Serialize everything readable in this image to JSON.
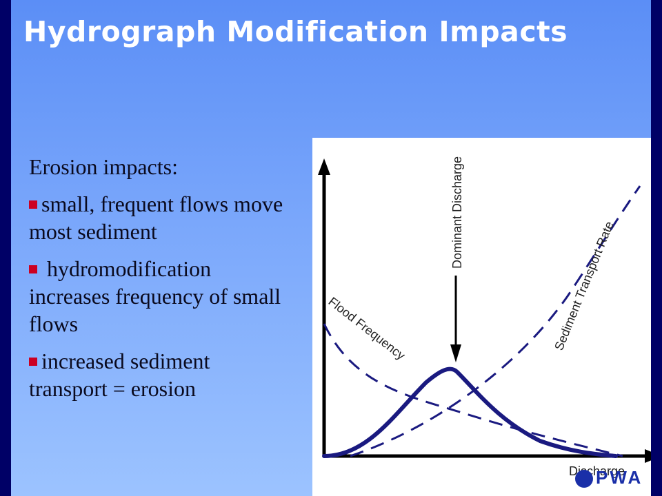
{
  "slide": {
    "title": "Hydrograph Modification Impacts",
    "heading": "Erosion impacts:",
    "bullets": [
      "small, frequent flows move most sediment",
      " hydromodification increases frequency of small flows",
      "increased sediment transport = erosion"
    ],
    "colors": {
      "background_top": "#5b8ef6",
      "background_bottom": "#9cc3ff",
      "frame": "#000066",
      "bullet_marker": "#cc0022",
      "curve": "#1a1a80"
    }
  },
  "figure": {
    "labels": {
      "dominant_discharge": "Dominant Discharge",
      "sediment_transport_rate": "Sediment Transport Rate",
      "flood_frequency": "Flood Frequency",
      "x_axis": "Discharge"
    }
  },
  "logo": {
    "text": "PWA"
  }
}
